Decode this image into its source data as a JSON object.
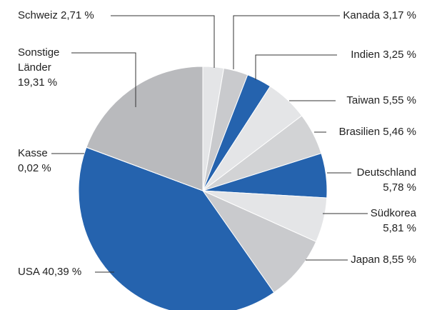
{
  "chart_data": {
    "type": "pie",
    "categories": [
      "Schweiz",
      "Kanada",
      "Indien",
      "Taiwan",
      "Brasilien",
      "Deutschland",
      "Südkorea",
      "Japan",
      "USA",
      "Kasse",
      "Sonstige Länder"
    ],
    "values": [
      2.71,
      3.17,
      3.25,
      5.55,
      5.46,
      5.78,
      5.81,
      8.55,
      40.39,
      0.02,
      19.31
    ],
    "value_labels": [
      "2,71 %",
      "3,17 %",
      "3,25 %",
      "5,55 %",
      "5,46 %",
      "5,78 %",
      "5,81 %",
      "8,55 %",
      "40,39 %",
      "0,02 %",
      "19,31 %"
    ],
    "colors": [
      "#e4e5e7",
      "#c9cacd",
      "#2563ae",
      "#e4e5e7",
      "#d2d3d5",
      "#2563ae",
      "#e4e5e7",
      "#c9cacd",
      "#2563ae",
      "#f4f4f5",
      "#b9babd"
    ]
  }
}
